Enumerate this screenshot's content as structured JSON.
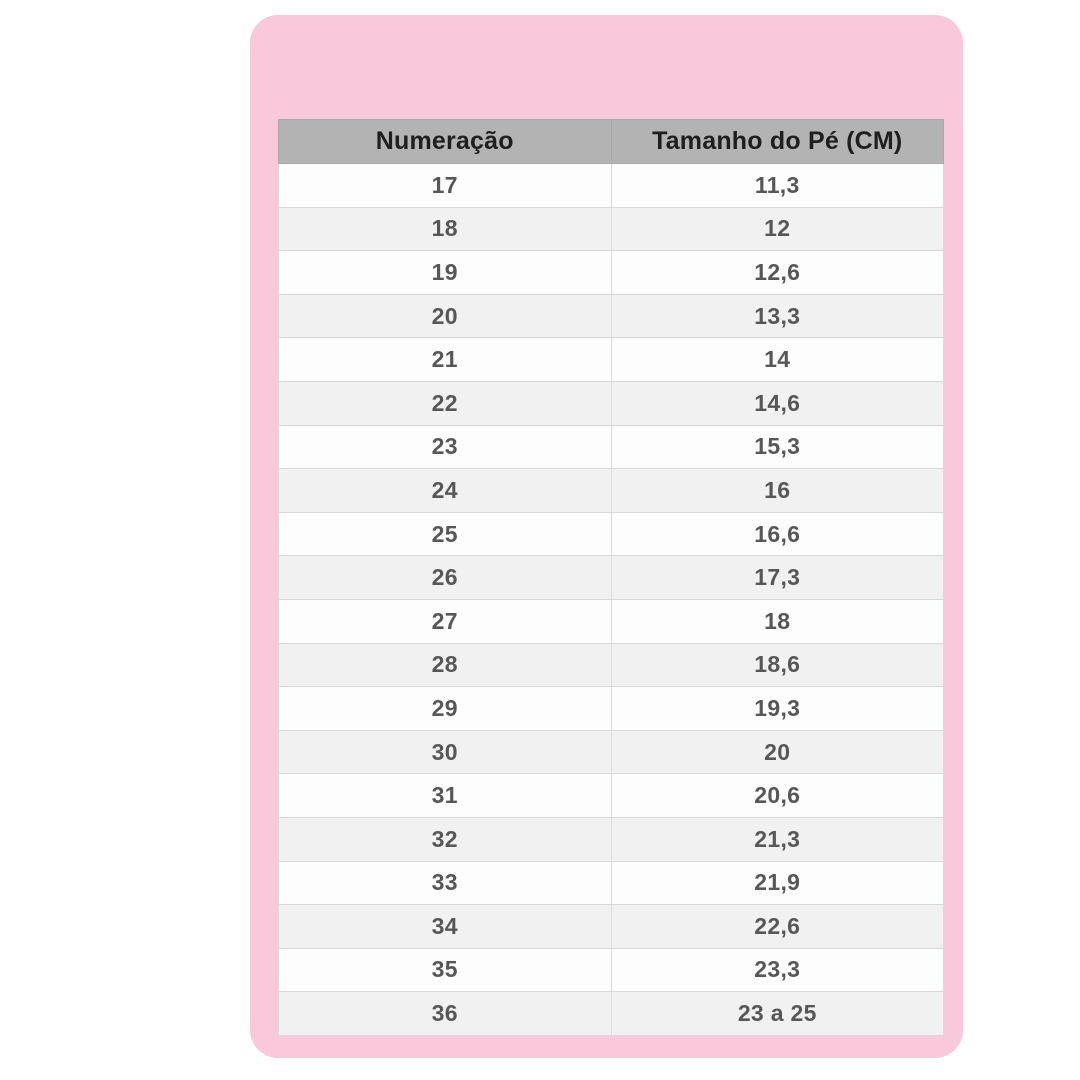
{
  "colors": {
    "page_bg": "#ffffff",
    "card_pink": "#f9c8db",
    "header_gray": "#b3b3b3",
    "header_text": "#1f1f1f",
    "row_white": "#fdfdfd",
    "row_gray": "#f1f1f2",
    "grid_line": "#d9d9d9",
    "cell_text": "#575757"
  },
  "table": {
    "headers": [
      "Numeração",
      "Tamanho do Pé (CM)"
    ],
    "rows": [
      {
        "size": "17",
        "cm": "11,3"
      },
      {
        "size": "18",
        "cm": "12"
      },
      {
        "size": "19",
        "cm": "12,6"
      },
      {
        "size": "20",
        "cm": "13,3"
      },
      {
        "size": "21",
        "cm": "14"
      },
      {
        "size": "22",
        "cm": "14,6"
      },
      {
        "size": "23",
        "cm": "15,3"
      },
      {
        "size": "24",
        "cm": "16"
      },
      {
        "size": "25",
        "cm": "16,6"
      },
      {
        "size": "26",
        "cm": "17,3"
      },
      {
        "size": "27",
        "cm": "18"
      },
      {
        "size": "28",
        "cm": "18,6"
      },
      {
        "size": "29",
        "cm": "19,3"
      },
      {
        "size": "30",
        "cm": "20"
      },
      {
        "size": "31",
        "cm": "20,6"
      },
      {
        "size": "32",
        "cm": "21,3"
      },
      {
        "size": "33",
        "cm": "21,9"
      },
      {
        "size": "34",
        "cm": "22,6"
      },
      {
        "size": "35",
        "cm": "23,3"
      },
      {
        "size": "36",
        "cm": "23 a 25"
      }
    ]
  }
}
